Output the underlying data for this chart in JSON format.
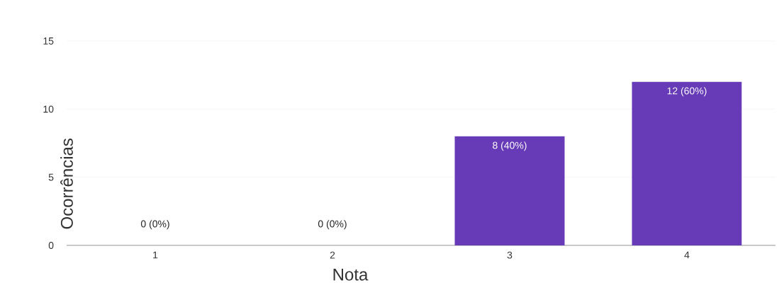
{
  "chart_data": {
    "type": "bar",
    "xlabel": "Nota",
    "ylabel": "Ocorrências",
    "categories": [
      "1",
      "2",
      "3",
      "4"
    ],
    "values": [
      0,
      0,
      8,
      12
    ],
    "value_labels": [
      "0 (0%)",
      "0 (0%)",
      "8 (40%)",
      "12 (60%)"
    ],
    "color": "#673ab7",
    "ylim": [
      0,
      15
    ],
    "yticks": [
      0,
      5,
      10,
      15
    ],
    "grid": "y"
  }
}
